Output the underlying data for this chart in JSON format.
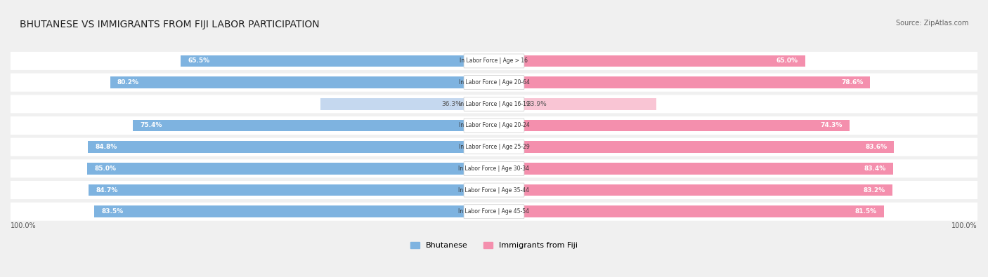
{
  "title": "BHUTANESE VS IMMIGRANTS FROM FIJI LABOR PARTICIPATION",
  "source": "Source: ZipAtlas.com",
  "categories": [
    "In Labor Force | Age > 16",
    "In Labor Force | Age 20-64",
    "In Labor Force | Age 16-19",
    "In Labor Force | Age 20-24",
    "In Labor Force | Age 25-29",
    "In Labor Force | Age 30-34",
    "In Labor Force | Age 35-44",
    "In Labor Force | Age 45-54"
  ],
  "bhutanese": [
    65.5,
    80.2,
    36.3,
    75.4,
    84.8,
    85.0,
    84.7,
    83.5
  ],
  "fiji": [
    65.0,
    78.6,
    33.9,
    74.3,
    83.6,
    83.4,
    83.2,
    81.5
  ],
  "blue_color": "#7EB3E0",
  "blue_dark_color": "#5B9BD5",
  "pink_color": "#F48FAD",
  "pink_dark_color": "#EF6B9A",
  "blue_light": "#C5D8EF",
  "pink_light": "#F9C5D4",
  "bg_color": "#f0f0f0",
  "row_bg": "#f7f7f7",
  "max_val": 100.0,
  "legend_blue": "Bhutanese",
  "legend_pink": "Immigrants from Fiji",
  "axis_label_left": "100.0%",
  "axis_label_right": "100.0%"
}
